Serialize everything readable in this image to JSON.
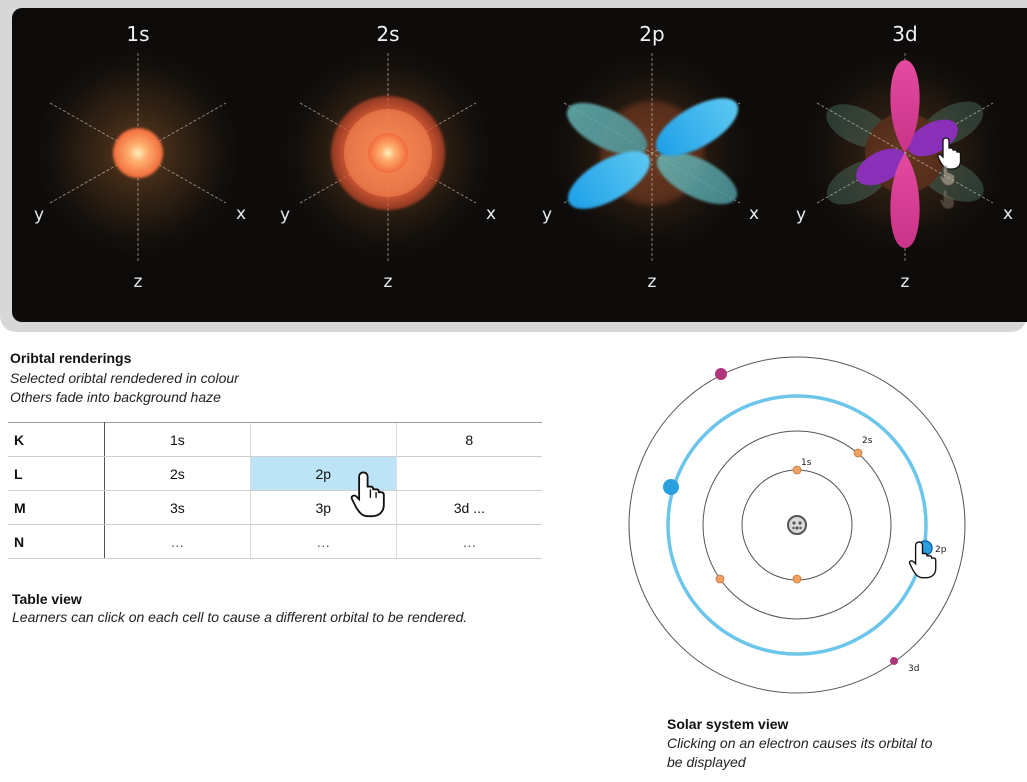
{
  "renderings": {
    "orbitals": [
      {
        "title": "1s",
        "axes": {
          "x": "x",
          "y": "y",
          "z": "z"
        }
      },
      {
        "title": "2s",
        "axes": {
          "x": "x",
          "y": "y",
          "z": "z"
        }
      },
      {
        "title": "2p",
        "axes": {
          "x": "x",
          "y": "y",
          "z": "z"
        }
      },
      {
        "title": "3d",
        "axes": {
          "x": "x",
          "y": "y",
          "z": "z"
        }
      }
    ],
    "caption": {
      "title": "Oribtal renderings",
      "line1": "Selected oribtal rendedered in colour",
      "line2": "Others fade into background haze"
    },
    "colors": {
      "s_orbital": "#ff9a55",
      "p_orbital": "#27a9ec",
      "d_orbital": "#d43d93",
      "d_secondary": "#8a2fb8"
    }
  },
  "table": {
    "rows": [
      {
        "shell": "K",
        "cells": [
          "1s",
          "",
          "8"
        ]
      },
      {
        "shell": "L",
        "cells": [
          "2s",
          "2p",
          ""
        ]
      },
      {
        "shell": "M",
        "cells": [
          "3s",
          "3p",
          "3d ..."
        ]
      },
      {
        "shell": "N",
        "cells": [
          "…",
          "…",
          "…"
        ]
      }
    ],
    "selected_cell": "2p",
    "highlight_color": "#bde3f6",
    "caption": {
      "title": "Table view",
      "line1": "Learners can click on each cell to cause a different orbital to be rendered."
    }
  },
  "solar": {
    "labels": {
      "s1": "1s",
      "s2": "2s",
      "p2": "2p",
      "d3": "3d"
    },
    "caption": {
      "title": "Solar system view",
      "line1": "Clicking on an electron causes its orbital to",
      "line2": "be displayed"
    },
    "colors": {
      "s_electron": "#f0a060",
      "p_electron": "#2a9fe0",
      "d_electron": "#b0357c",
      "selected_orbit": "#6cc5ea"
    }
  }
}
